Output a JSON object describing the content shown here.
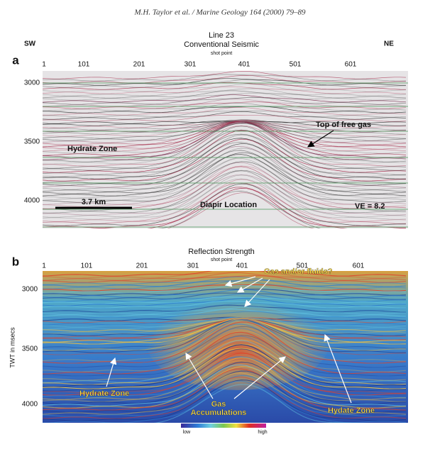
{
  "header": {
    "citation": "M.H. Taylor et al. / Marine Geology 164 (2000) 79–89"
  },
  "panel_a": {
    "label": "a",
    "line": "Line 23",
    "title": "Conventional Seismic",
    "x_axis_label": "shot point",
    "left_direction": "SW",
    "right_direction": "NE",
    "shot_points": [
      "1",
      "101",
      "201",
      "301",
      "401",
      "501",
      "601"
    ],
    "twt_ticks": [
      "3000",
      "3500",
      "4000"
    ],
    "annotations": {
      "hydrate_zone": "Hydrate Zone",
      "top_free_gas": "Top of free gas",
      "diapir": "Diapir Location",
      "scale": "3.7 km",
      "ve": "VE = 8.2"
    }
  },
  "panel_b": {
    "label": "b",
    "title": "Reflection Strength",
    "x_axis_label": "shot point",
    "y_axis_label": "TWT in msecs",
    "shot_points": [
      "1",
      "101",
      "201",
      "301",
      "401",
      "501",
      "601"
    ],
    "twt_ticks": [
      "3000",
      "3500",
      "4000"
    ],
    "annotations": {
      "gas_fluids": "Gas and/or fluids?",
      "hydrate_zone": "Hydrate Zone",
      "gas": "Gas",
      "accumulations": "Accumulations",
      "hydate_zone": "Hydate Zone"
    },
    "colorbar": {
      "low": "low",
      "high": "high"
    }
  }
}
